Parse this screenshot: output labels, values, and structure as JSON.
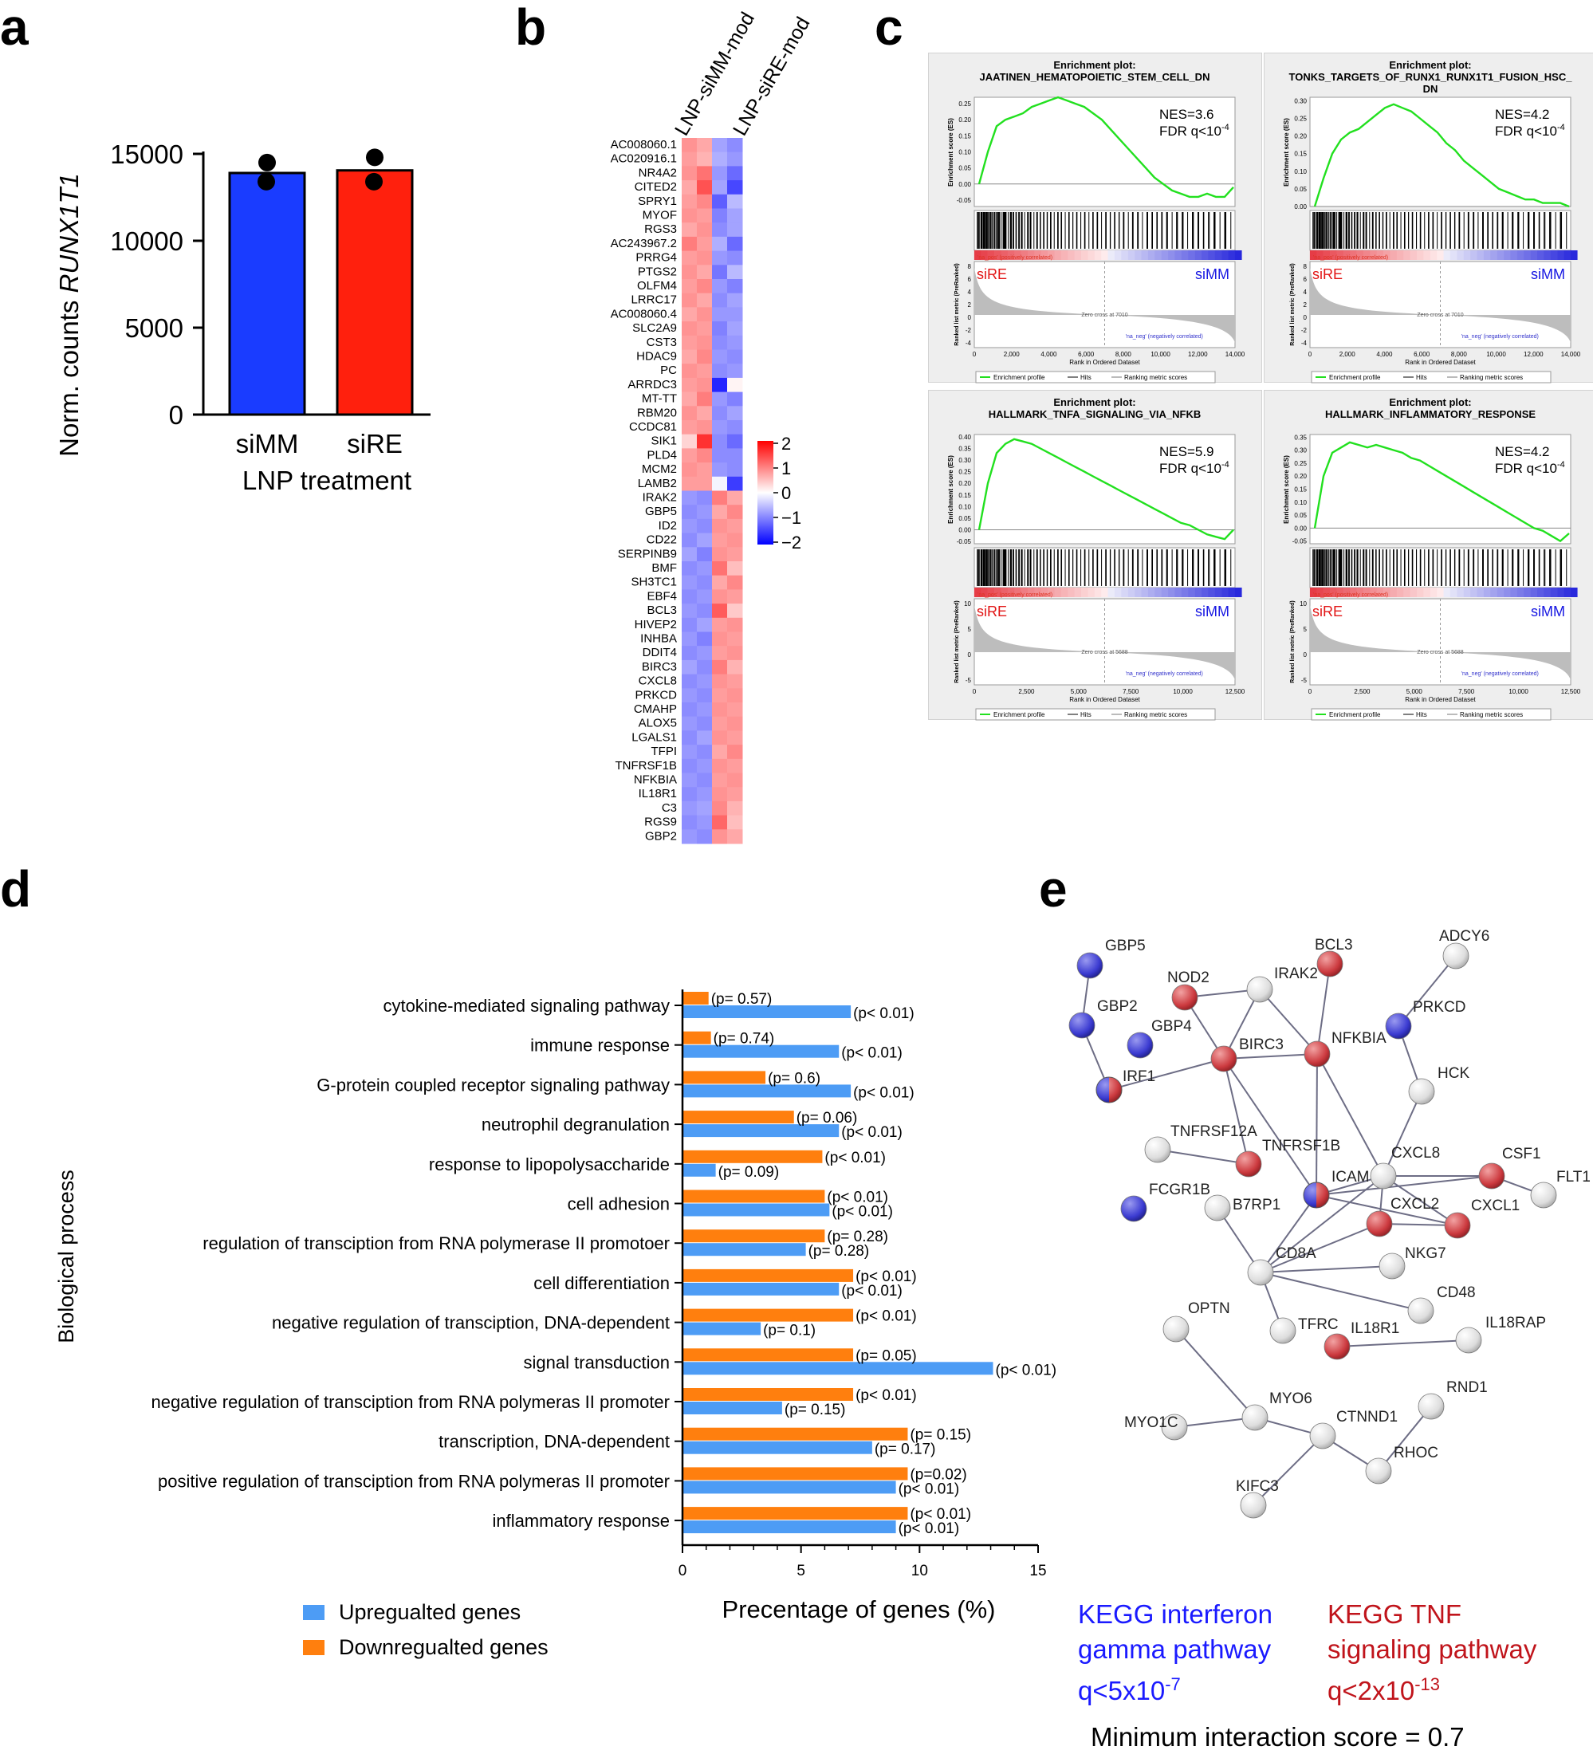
{
  "panels": {
    "a": "a",
    "b": "b",
    "c": "c",
    "d": "d",
    "e": "e"
  },
  "panel_a": {
    "chart_data": {
      "type": "bar",
      "categories": [
        "siMM",
        "siRE"
      ],
      "values": [
        13900,
        14050
      ],
      "points": [
        [
          14500,
          13400
        ],
        [
          14800,
          13400
        ]
      ],
      "ylabel_prefix": "Norm. counts ",
      "ylabel_gene": "RUNX1T1",
      "xlabel": "LNP treatment",
      "ylim": [
        0,
        15000
      ],
      "yticks": [
        "0",
        "5000",
        "10000",
        "15000"
      ],
      "colors": [
        "#1a3cff",
        "#ff200d"
      ]
    }
  },
  "panel_b": {
    "columns": [
      "LNP-siMM-mod",
      "LNP-siRE-mod"
    ],
    "genes": [
      "AC008060.1",
      "AC020916.1",
      "NR4A2",
      "CITED2",
      "SPRY1",
      "MYOF",
      "RGS3",
      "AC243967.2",
      "PRRG4",
      "PTGS2",
      "OLFM4",
      "LRRC17",
      "AC008060.4",
      "SLC2A9",
      "CST3",
      "HDAC9",
      "PC",
      "ARRDC3",
      "MT-TT",
      "RBM20",
      "CCDC81",
      "SIK1",
      "PLD4",
      "MCM2",
      "LAMB2",
      "IRAK2",
      "GBP5",
      "ID2",
      "CD22",
      "SERPINB9",
      "BMF",
      "SH3TC1",
      "EBF4",
      "BCL3",
      "HIVEP2",
      "INHBA",
      "DDIT4",
      "BIRC3",
      "CXCL8",
      "PRKCD",
      "CMAHP",
      "ALOX5",
      "LGALS1",
      "TFPI",
      "TNFRSF1B",
      "NFKBIA",
      "IL18R1",
      "C3",
      "RGS9",
      "GBP2"
    ],
    "legend": [
      "2",
      "1",
      "0",
      "−1",
      "−2"
    ],
    "chart_data": {
      "type": "heatmap",
      "rows": 50,
      "columns_per_group": 2,
      "value_range": [
        -2,
        2
      ],
      "up_rows": 25,
      "values": [
        [
          1.0,
          0.8,
          -0.8,
          -1.0
        ],
        [
          0.9,
          0.7,
          -0.7,
          -0.9
        ],
        [
          1.0,
          1.3,
          -0.9,
          -1.3
        ],
        [
          0.8,
          1.6,
          -0.8,
          -1.6
        ],
        [
          0.9,
          1.1,
          -1.4,
          -0.6
        ],
        [
          1.0,
          0.9,
          -1.1,
          -0.8
        ],
        [
          0.8,
          1.0,
          -1.0,
          -0.8
        ],
        [
          1.2,
          0.9,
          -0.7,
          -1.3
        ],
        [
          0.9,
          1.0,
          -0.9,
          -1.0
        ],
        [
          1.0,
          0.8,
          -1.2,
          -0.6
        ],
        [
          0.9,
          1.1,
          -0.9,
          -1.1
        ],
        [
          1.0,
          0.8,
          -1.0,
          -0.8
        ],
        [
          0.8,
          1.0,
          -0.9,
          -0.9
        ],
        [
          1.0,
          0.9,
          -1.1,
          -0.8
        ],
        [
          0.9,
          1.0,
          -1.0,
          -0.9
        ],
        [
          0.8,
          1.1,
          -0.9,
          -1.0
        ],
        [
          1.0,
          0.9,
          -1.0,
          -0.9
        ],
        [
          0.9,
          1.0,
          -1.9,
          0.1
        ],
        [
          0.8,
          1.2,
          -0.9,
          -1.1
        ],
        [
          1.0,
          0.8,
          -1.0,
          -0.8
        ],
        [
          0.9,
          1.0,
          -0.9,
          -1.0
        ],
        [
          0.4,
          1.9,
          -1.0,
          -1.3
        ],
        [
          0.9,
          1.1,
          -1.0,
          -1.0
        ],
        [
          1.0,
          0.9,
          -0.9,
          -1.0
        ],
        [
          0.9,
          0.9,
          -0.1,
          -1.7
        ],
        [
          -0.9,
          -1.0,
          1.2,
          0.8
        ],
        [
          -1.0,
          -0.9,
          0.8,
          1.1
        ],
        [
          -0.9,
          -1.0,
          1.0,
          0.9
        ],
        [
          -1.0,
          -0.8,
          0.9,
          1.0
        ],
        [
          -0.8,
          -1.1,
          1.0,
          0.9
        ],
        [
          -1.0,
          -0.9,
          1.3,
          0.6
        ],
        [
          -0.9,
          -1.0,
          0.8,
          1.1
        ],
        [
          -1.0,
          -0.9,
          1.0,
          0.9
        ],
        [
          -0.9,
          -1.0,
          1.5,
          0.5
        ],
        [
          -1.0,
          -0.8,
          0.9,
          1.0
        ],
        [
          -0.9,
          -1.1,
          1.0,
          0.9
        ],
        [
          -1.0,
          -0.9,
          0.9,
          1.0
        ],
        [
          -0.8,
          -1.0,
          1.2,
          0.7
        ],
        [
          -1.0,
          -0.9,
          1.0,
          0.9
        ],
        [
          -0.9,
          -1.0,
          0.9,
          1.0
        ],
        [
          -1.0,
          -0.9,
          1.0,
          0.9
        ],
        [
          -0.9,
          -1.0,
          0.9,
          1.0
        ],
        [
          -1.0,
          -0.8,
          1.0,
          0.9
        ],
        [
          -0.9,
          -1.0,
          0.8,
          1.1
        ],
        [
          -1.0,
          -0.9,
          1.0,
          0.9
        ],
        [
          -0.9,
          -1.0,
          0.9,
          1.0
        ],
        [
          -1.0,
          -0.9,
          1.0,
          0.9
        ],
        [
          -0.9,
          -0.8,
          1.1,
          0.7
        ],
        [
          -1.0,
          -0.9,
          1.4,
          0.6
        ],
        [
          -0.9,
          -1.0,
          1.0,
          0.8
        ]
      ]
    }
  },
  "panel_c": {
    "plots": [
      {
        "title1": "Enrichment plot:",
        "title2": "JAATINEN_HEMATOPOIETIC_STEM_CELL_DN",
        "title3": "",
        "nes": "NES=3.6",
        "fdr": "FDR q<10",
        "fdr_exp": "-4",
        "pos": "siRE",
        "neg": "siMM",
        "es_ticks": [
          "0.25",
          "0.20",
          "0.15",
          "0.10",
          "0.05",
          "0.00",
          "-0.05"
        ],
        "es_range": [
          -0.07,
          0.27
        ],
        "rank_ticks": [
          "0",
          "2,000",
          "4,000",
          "6,000",
          "8,000",
          "10,000",
          "12,000",
          "14,000"
        ],
        "metric_ticks": [
          "8",
          "6",
          "4",
          "2",
          "0",
          "-2",
          "-4"
        ],
        "zero_cross": "Zero cross at 7010",
        "curve": [
          0,
          0.1,
          0.18,
          0.2,
          0.21,
          0.22,
          0.24,
          0.25,
          0.26,
          0.27,
          0.26,
          0.25,
          0.24,
          0.22,
          0.2,
          0.17,
          0.14,
          0.11,
          0.08,
          0.05,
          0.02,
          0.0,
          -0.02,
          -0.03,
          -0.04,
          -0.04,
          -0.03,
          -0.04,
          -0.04,
          -0.01
        ]
      },
      {
        "title1": "Enrichment plot:",
        "title2": "TONKS_TARGETS_OF_RUNX1_RUNX1T1_FUSION_HSC_",
        "title3": "DN",
        "nes": "NES=4.2",
        "fdr": "FDR q<10",
        "fdr_exp": "-4",
        "pos": "siRE",
        "neg": "siMM",
        "es_ticks": [
          "0.30",
          "0.25",
          "0.20",
          "0.15",
          "0.10",
          "0.05",
          "0.00"
        ],
        "es_range": [
          0,
          0.31
        ],
        "rank_ticks": [
          "0",
          "2,000",
          "4,000",
          "6,000",
          "8,000",
          "10,000",
          "12,000",
          "14,000"
        ],
        "metric_ticks": [
          "8",
          "6",
          "4",
          "2",
          "0",
          "-2",
          "-4"
        ],
        "zero_cross": "Zero cross at 7010",
        "curve": [
          0,
          0.08,
          0.15,
          0.19,
          0.21,
          0.22,
          0.24,
          0.26,
          0.28,
          0.29,
          0.28,
          0.27,
          0.25,
          0.23,
          0.21,
          0.18,
          0.16,
          0.13,
          0.11,
          0.09,
          0.07,
          0.05,
          0.04,
          0.03,
          0.02,
          0.02,
          0.01,
          0.01,
          0.01,
          0.0
        ]
      },
      {
        "title1": "Enrichment plot:",
        "title2": "HALLMARK_TNFA_SIGNALING_VIA_NFKB",
        "title3": "",
        "nes": "NES=5.9",
        "fdr": "FDR q<10",
        "fdr_exp": "-4",
        "pos": "siRE",
        "neg": "siMM",
        "es_ticks": [
          "0.40",
          "0.35",
          "0.30",
          "0.25",
          "0.20",
          "0.15",
          "0.10",
          "0.05",
          "0.00",
          "-0.05"
        ],
        "es_range": [
          -0.06,
          0.41
        ],
        "rank_ticks": [
          "0",
          "2,500",
          "5,000",
          "7,500",
          "10,000",
          "12,500"
        ],
        "metric_ticks": [
          "10",
          "5",
          "0",
          "-5"
        ],
        "zero_cross": "Zero cross at 5688",
        "curve": [
          0,
          0.2,
          0.33,
          0.37,
          0.39,
          0.38,
          0.37,
          0.35,
          0.33,
          0.31,
          0.29,
          0.27,
          0.25,
          0.23,
          0.21,
          0.19,
          0.17,
          0.15,
          0.13,
          0.11,
          0.09,
          0.07,
          0.05,
          0.03,
          0.02,
          0.0,
          -0.02,
          -0.03,
          -0.04,
          0.0
        ]
      },
      {
        "title1": "Enrichment plot:",
        "title2": "HALLMARK_INFLAMMATORY_RESPONSE",
        "title3": "",
        "nes": "NES=4.2",
        "fdr": "FDR q<10",
        "fdr_exp": "-4",
        "pos": "siRE",
        "neg": "siMM",
        "es_ticks": [
          "0.35",
          "0.30",
          "0.25",
          "0.20",
          "0.15",
          "0.10",
          "0.05",
          "0.00",
          "-0.05"
        ],
        "es_range": [
          -0.06,
          0.36
        ],
        "rank_ticks": [
          "0",
          "2,500",
          "5,000",
          "7,500",
          "10,000",
          "12,500"
        ],
        "metric_ticks": [
          "10",
          "5",
          "0",
          "-5"
        ],
        "zero_cross": "Zero cross at 5688",
        "curve": [
          0,
          0.2,
          0.29,
          0.31,
          0.33,
          0.32,
          0.31,
          0.32,
          0.31,
          0.3,
          0.29,
          0.27,
          0.26,
          0.24,
          0.22,
          0.2,
          0.18,
          0.16,
          0.14,
          0.12,
          0.1,
          0.08,
          0.06,
          0.04,
          0.02,
          0.0,
          -0.01,
          -0.03,
          -0.05,
          -0.02
        ]
      }
    ],
    "rank_label": "Rank in Ordered Dataset",
    "es_label": "Enrichment score (ES)",
    "metric_label": "Ranked list metric (PreRanked)",
    "pos_corr": "'na_pos' (positively correlated)",
    "neg_corr": "'na_neg' (negatively correlated)",
    "legend": [
      "Enrichment profile",
      "Hits",
      "Ranking metric scores"
    ]
  },
  "panel_d": {
    "chart_data": {
      "type": "bar",
      "orientation": "horizontal",
      "categories": [
        "cytokine-mediated signaling pathway",
        "immune response",
        "G-protein coupled receptor signaling pathway",
        "neutrophil degranulation",
        "response to lipopolysaccharide",
        "cell adhesion",
        "regulation of transciption from RNA polymerase II promotoer",
        "cell differentiation",
        "negative regulation of transciption, DNA-dependent",
        "signal transduction",
        "negative regulation of transciption from RNA polymeras II promoter",
        "transcription, DNA-dependent",
        "positive regulation of transciption from RNA polymeras II promoter",
        "inflammatory response"
      ],
      "series": [
        {
          "name": "Downregualted genes",
          "color": "#ff7f0e",
          "values": [
            1.1,
            1.2,
            3.5,
            4.7,
            5.9,
            6.0,
            6.0,
            7.2,
            7.2,
            7.2,
            7.2,
            9.5,
            9.5,
            9.5
          ],
          "pvals": [
            "(p= 0.57)",
            "(p= 0.74)",
            "(p= 0.6)",
            "(p= 0.06)",
            "(p< 0.01)",
            "(p< 0.01)",
            "(p= 0.28)",
            "(p< 0.01)",
            "(p< 0.01)",
            "(p= 0.05)",
            "(p< 0.01)",
            "(p= 0.15)",
            "(p=0.02)",
            "(p< 0.01)"
          ]
        },
        {
          "name": "Upregualted genes",
          "color": "#4d9cf5",
          "values": [
            7.1,
            6.6,
            7.1,
            6.6,
            1.4,
            6.2,
            5.2,
            6.6,
            3.3,
            13.1,
            4.2,
            8.0,
            9.0,
            9.0
          ],
          "pvals": [
            "(p< 0.01)",
            "(p< 0.01)",
            "(p< 0.01)",
            "(p< 0.01)",
            "(p= 0.09)",
            "(p< 0.01)",
            "(p= 0.28)",
            "(p< 0.01)",
            "(p= 0.1)",
            "(p< 0.01)",
            "(p= 0.15)",
            "(p= 0.17)",
            "(p< 0.01)",
            "(p< 0.01)"
          ]
        }
      ],
      "xlabel": "Precentage of genes (%)",
      "ylabel": "Biological process",
      "xlim": [
        0,
        15
      ],
      "xticks": [
        "0",
        "5",
        "10",
        "15"
      ],
      "legend": [
        "Upregualted genes",
        "Downregualted genes"
      ]
    }
  },
  "panel_e": {
    "nodes": [
      {
        "id": "GBP5",
        "type": "blue"
      },
      {
        "id": "GBP2",
        "type": "blue"
      },
      {
        "id": "GBP4",
        "type": "blue"
      },
      {
        "id": "IRF1",
        "type": "split"
      },
      {
        "id": "NOD2",
        "type": "red"
      },
      {
        "id": "IRAK2",
        "type": "grey"
      },
      {
        "id": "BCL3",
        "type": "red"
      },
      {
        "id": "ADCY6",
        "type": "grey"
      },
      {
        "id": "BIRC3",
        "type": "red"
      },
      {
        "id": "NFKBIA",
        "type": "red"
      },
      {
        "id": "PRKCD",
        "type": "blue"
      },
      {
        "id": "HCK",
        "type": "grey"
      },
      {
        "id": "TNFRSF12A",
        "type": "grey"
      },
      {
        "id": "TNFRSF1B",
        "type": "red"
      },
      {
        "id": "CXCL8",
        "type": "grey"
      },
      {
        "id": "CSF1",
        "type": "red"
      },
      {
        "id": "FLT1",
        "type": "grey"
      },
      {
        "id": "FCGR1B",
        "type": "blue"
      },
      {
        "id": "ICAM",
        "type": "split"
      },
      {
        "id": "B7RP1",
        "type": "grey"
      },
      {
        "id": "CXCL2",
        "type": "red"
      },
      {
        "id": "CXCL1",
        "type": "red"
      },
      {
        "id": "CD8A",
        "type": "grey"
      },
      {
        "id": "NKG7",
        "type": "grey"
      },
      {
        "id": "CD48",
        "type": "grey"
      },
      {
        "id": "OPTN",
        "type": "grey"
      },
      {
        "id": "TFRC",
        "type": "grey"
      },
      {
        "id": "IL18R1",
        "type": "red"
      },
      {
        "id": "IL18RAP",
        "type": "grey"
      },
      {
        "id": "MYO6",
        "type": "grey"
      },
      {
        "id": "MYO1C",
        "type": "grey"
      },
      {
        "id": "CTNND1",
        "type": "grey"
      },
      {
        "id": "RND1",
        "type": "grey"
      },
      {
        "id": "RHOC",
        "type": "grey"
      },
      {
        "id": "KIFC3",
        "type": "grey"
      }
    ],
    "edges": [
      [
        "GBP5",
        "GBP2"
      ],
      [
        "GBP2",
        "IRF1"
      ],
      [
        "IRF1",
        "BIRC3"
      ],
      [
        "BIRC3",
        "NOD2"
      ],
      [
        "NOD2",
        "IRAK2"
      ],
      [
        "BIRC3",
        "IRAK2"
      ],
      [
        "IRAK2",
        "NFKBIA"
      ],
      [
        "BCL3",
        "NFKBIA"
      ],
      [
        "BIRC3",
        "NFKBIA"
      ],
      [
        "NFKBIA",
        "CXCL8"
      ],
      [
        "PRKCD",
        "ADCY6"
      ],
      [
        "PRKCD",
        "HCK"
      ],
      [
        "HCK",
        "CXCL8"
      ],
      [
        "BIRC3",
        "TNFRSF1B"
      ],
      [
        "TNFRSF12A",
        "TNFRSF1B"
      ],
      [
        "BIRC3",
        "ICAM"
      ],
      [
        "NFKBIA",
        "ICAM"
      ],
      [
        "ICAM",
        "CXCL8"
      ],
      [
        "CXCL8",
        "CSF1"
      ],
      [
        "CSF1",
        "FLT1"
      ],
      [
        "CXCL8",
        "CXCL2"
      ],
      [
        "CXCL8",
        "CXCL1"
      ],
      [
        "CXCL2",
        "CXCL1"
      ],
      [
        "ICAM",
        "CXCL1"
      ],
      [
        "ICAM",
        "CSF1"
      ],
      [
        "CXCL8",
        "CD8A"
      ],
      [
        "ICAM",
        "CD8A"
      ],
      [
        "CXCL2",
        "CD8A"
      ],
      [
        "B7RP1",
        "CD8A"
      ],
      [
        "CD8A",
        "NKG7"
      ],
      [
        "CD8A",
        "CD48"
      ],
      [
        "CD8A",
        "TFRC"
      ],
      [
        "IL18R1",
        "IL18RAP"
      ],
      [
        "OPTN",
        "MYO6"
      ],
      [
        "MYO1C",
        "MYO6"
      ],
      [
        "MYO6",
        "CTNND1"
      ],
      [
        "CTNND1",
        "KIFC3"
      ],
      [
        "CTNND1",
        "RHOC"
      ],
      [
        "RHOC",
        "RND1"
      ]
    ],
    "kegg_ifn": [
      "KEGG interferon",
      "gamma pathway",
      "q<5x10",
      "-7"
    ],
    "kegg_tnf": [
      "KEGG TNF",
      "signaling pathway",
      "q<2x10",
      "-13"
    ],
    "min_score": "Minimum interaction score = 0.7",
    "colors": {
      "blue": "#3a3ad6",
      "red": "#c7393f",
      "grey": "#dcdcdc",
      "ifn_text": "#1a1aff",
      "tnf_text": "#c0141b"
    }
  }
}
